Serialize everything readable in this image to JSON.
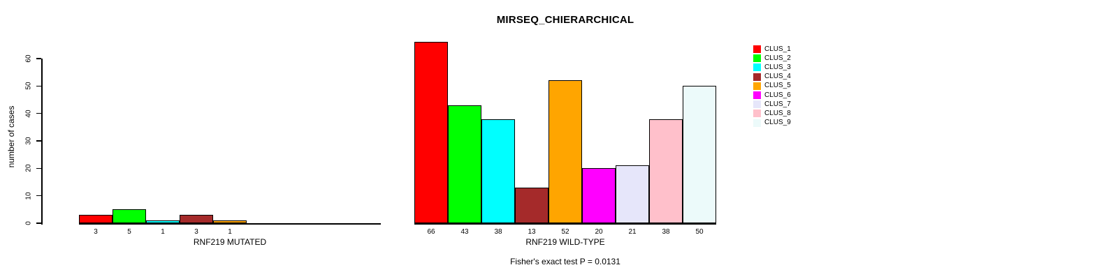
{
  "chart_data": {
    "type": "bar",
    "title": "MIRSEQ_CHIERARCHICAL",
    "ylabel": "number of cases",
    "ylim": [
      0,
      60
    ],
    "yticks": [
      0,
      10,
      20,
      30,
      40,
      50,
      60
    ],
    "grid": false,
    "legend_position": "right",
    "categories": [
      "CLUS_1",
      "CLUS_2",
      "CLUS_3",
      "CLUS_4",
      "CLUS_5",
      "CLUS_6",
      "CLUS_7",
      "CLUS_8",
      "CLUS_9"
    ],
    "series_colors": [
      "#FF0000",
      "#00FF00",
      "#00FFFF",
      "#A52A2A",
      "#FFA500",
      "#FF00FF",
      "#E6E6FA",
      "#FFC0CB",
      "#ECFAFA"
    ],
    "groups": [
      {
        "xlabel": "RNF219 MUTATED",
        "values": [
          3,
          5,
          1,
          3,
          1,
          0,
          0,
          0,
          0
        ]
      },
      {
        "xlabel": "RNF219 WILD-TYPE",
        "values": [
          66,
          43,
          38,
          13,
          52,
          20,
          21,
          38,
          50
        ]
      }
    ],
    "annotation": "Fisher's exact test P = 0.0131"
  }
}
